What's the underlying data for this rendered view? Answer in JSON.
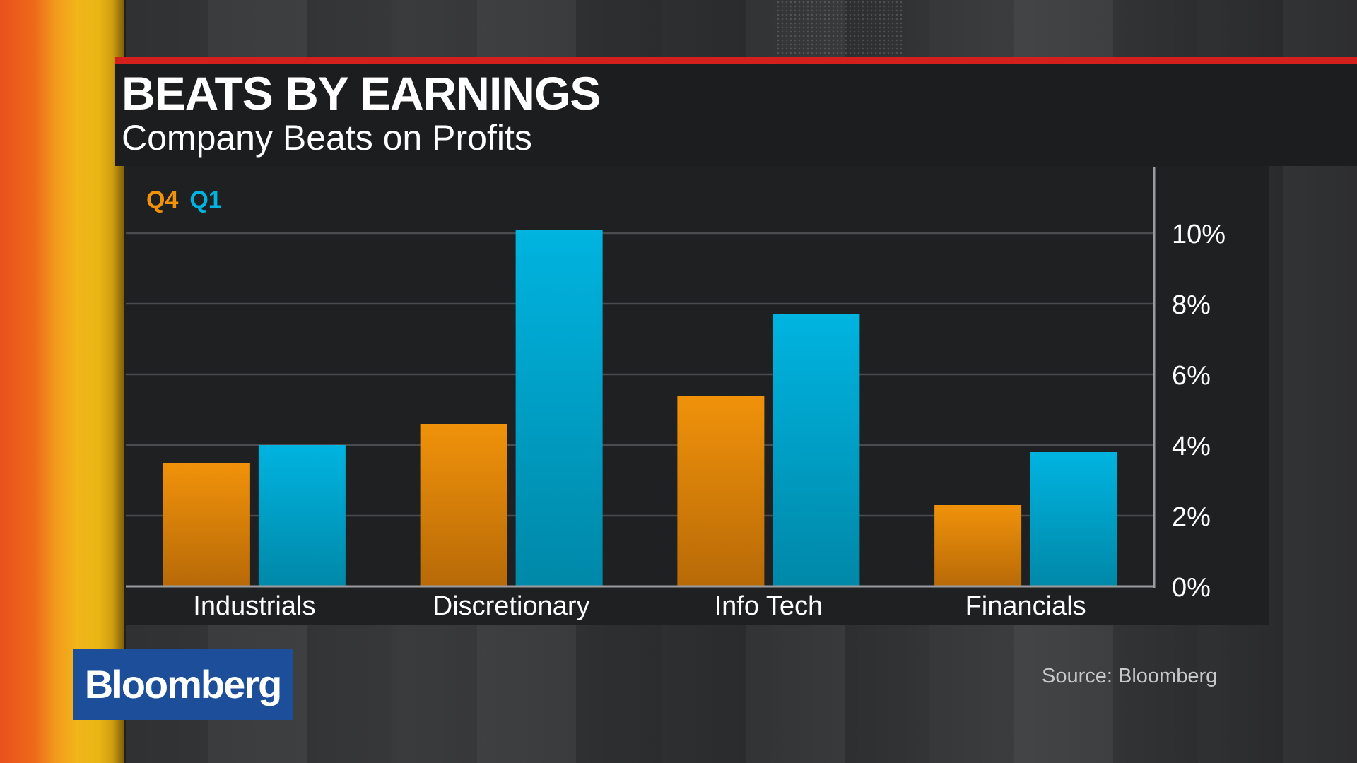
{
  "header": {
    "title": "BEATS BY EARNINGS",
    "subtitle": "Company Beats on Profits"
  },
  "footer": {
    "source": "Source: Bloomberg",
    "logo_text": "Bloomberg"
  },
  "colors": {
    "q4": "#f0920a",
    "q4_dark": "#b86a08",
    "q1": "#00b4e0",
    "q1_dark": "#0088a8",
    "accent_red": "#d4201c",
    "brand_blue": "#1d4e9a"
  },
  "chart_data": {
    "type": "bar",
    "title": "BEATS BY EARNINGS",
    "subtitle": "Company Beats on Profits",
    "categories": [
      "Industrials",
      "Discretionary",
      "Info Tech",
      "Financials"
    ],
    "series": [
      {
        "name": "Q4",
        "values": [
          3.5,
          4.6,
          5.4,
          2.3
        ]
      },
      {
        "name": "Q1",
        "values": [
          4.0,
          10.1,
          7.7,
          3.8
        ]
      }
    ],
    "yticks": [
      "0%",
      "2%",
      "4%",
      "6%",
      "8%",
      "10%"
    ],
    "ytick_values": [
      0,
      2,
      4,
      6,
      8,
      10
    ],
    "ylim": [
      0,
      10
    ],
    "y_axis_side": "right",
    "grid": true,
    "legend_position": "top-left",
    "xlabel": "",
    "ylabel": ""
  }
}
